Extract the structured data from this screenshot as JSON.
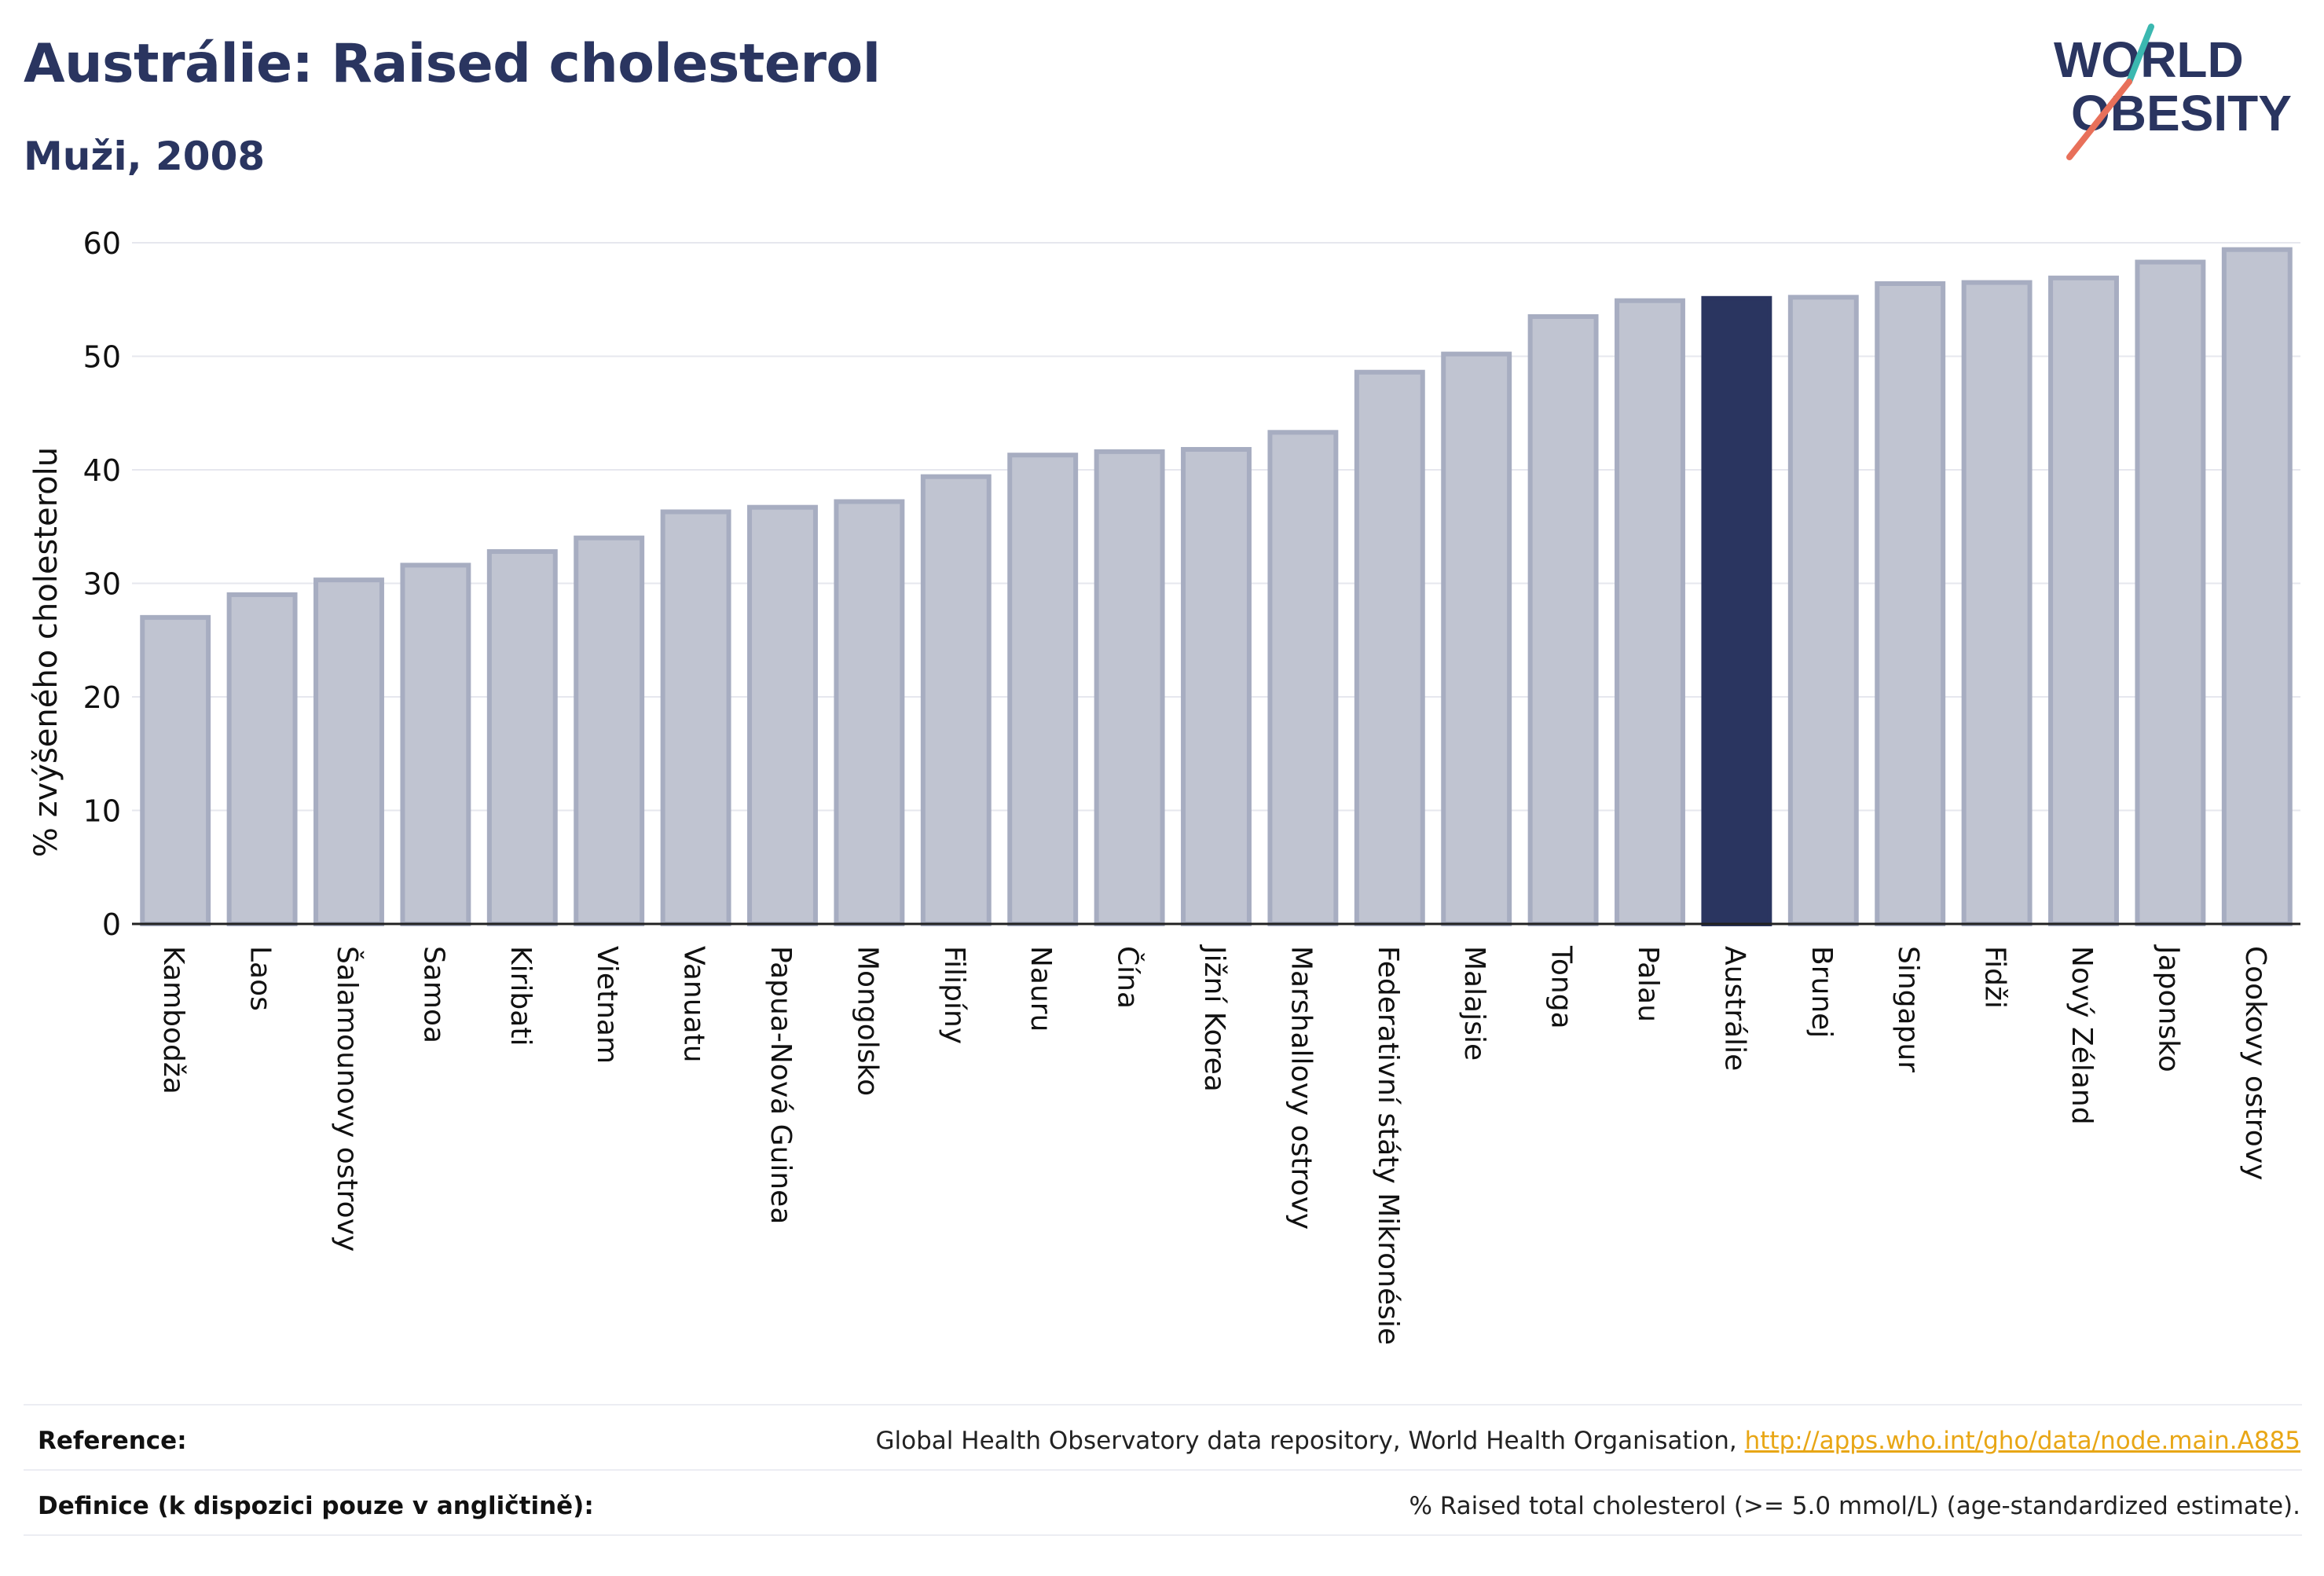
{
  "header": {
    "title": "Austrálie: Raised cholesterol",
    "subtitle": "Muži, 2008"
  },
  "logo": {
    "line1": "WORLD",
    "line2": "OBESITY",
    "colors": {
      "text": "#2a3560",
      "slash_top": "#3bb8b0",
      "slash_bottom": "#e8705a"
    }
  },
  "chart_data": {
    "type": "bar",
    "title": "",
    "xlabel": "",
    "ylabel": "% zvýšeného cholesterolu",
    "ylim": [
      0,
      60
    ],
    "yticks": [
      0,
      10,
      20,
      30,
      40,
      50,
      60
    ],
    "grid": true,
    "highlight": "Austrálie",
    "colors": {
      "bar": "#c0c4d1",
      "bar_border": "#a7adc1",
      "highlight": "#2a3560"
    },
    "categories": [
      "Kambodža",
      "Laos",
      "Šalamounovy ostrovy",
      "Samoa",
      "Kiribati",
      "Vietnam",
      "Vanuatu",
      "Papua-Nová Guinea",
      "Mongolsko",
      "Filipíny",
      "Nauru",
      "Čína",
      "Jižní Korea",
      "Marshallovy ostrovy",
      "Federativní státy Mikronésie",
      "Malajsie",
      "Tonga",
      "Palau",
      "Austrálie",
      "Brunej",
      "Singapur",
      "Fidži",
      "Nový Zéland",
      "Japonsko",
      "Cookovy ostrovy"
    ],
    "values": [
      27.0,
      29.0,
      30.3,
      31.6,
      32.8,
      34.0,
      36.3,
      36.7,
      37.2,
      39.4,
      41.3,
      41.6,
      41.8,
      43.3,
      48.6,
      50.2,
      53.5,
      54.9,
      55.1,
      55.2,
      56.4,
      56.5,
      56.9,
      58.3,
      59.4
    ]
  },
  "footer": {
    "reference_label": "Reference:",
    "reference_text": "Global Health Observatory data repository, World Health Organisation,",
    "reference_link": "http://apps.who.int/gho/data/node.main.A885",
    "definition_label": "Definice (k dispozici pouze v angličtině):",
    "definition_text": "% Raised total cholesterol (>= 5.0 mmol/L) (age-standardized estimate)."
  }
}
